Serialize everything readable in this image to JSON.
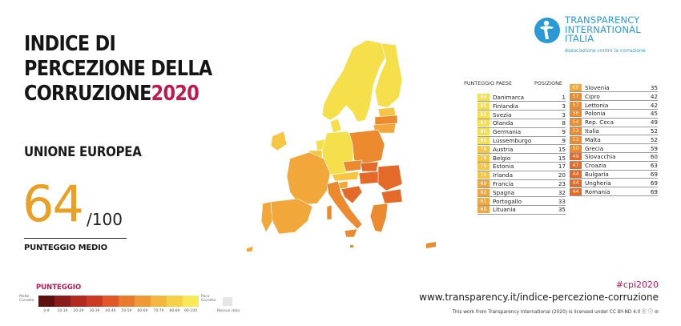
{
  "header": {
    "title_line1": "INDICE DI",
    "title_line2": "PERCEZIONE DELLA",
    "title_line3": "CORRUZIONE",
    "title_year": "2020"
  },
  "region": "UNIONE EUROPEA",
  "score": {
    "value": "64",
    "max": "/100",
    "label": "PUNTEGGIO MEDIO"
  },
  "logo": {
    "line1": "TRANSPARENCY",
    "line2": "INTERNATIONAL",
    "line3": "ITALIA",
    "subtitle": "Associazione contro la corruzione"
  },
  "table_headers": {
    "score": "PUNTEGGIO",
    "country": "PAESE",
    "rank": "POSIZIONE"
  },
  "countries_left": [
    {
      "score": "88",
      "name": "Danimarca",
      "rank": "1",
      "color": "#f5e04c"
    },
    {
      "score": "85",
      "name": "Finlandia",
      "rank": "3",
      "color": "#f5e04c"
    },
    {
      "score": "85",
      "name": "Svezia",
      "rank": "3",
      "color": "#f5e04c"
    },
    {
      "score": "82",
      "name": "Olanda",
      "rank": "8",
      "color": "#f5e04c"
    },
    {
      "score": "80",
      "name": "Germania",
      "rank": "9",
      "color": "#f5e04c"
    },
    {
      "score": "80",
      "name": "Lussemburgo",
      "rank": "9",
      "color": "#f5e04c"
    },
    {
      "score": "76",
      "name": "Austria",
      "rank": "15",
      "color": "#f6c544"
    },
    {
      "score": "76",
      "name": "Belgio",
      "rank": "15",
      "color": "#f6c544"
    },
    {
      "score": "75",
      "name": "Estonia",
      "rank": "17",
      "color": "#f6c544"
    },
    {
      "score": "72",
      "name": "Irlanda",
      "rank": "20",
      "color": "#f6c544"
    },
    {
      "score": "69",
      "name": "Francia",
      "rank": "23",
      "color": "#f2a73a"
    },
    {
      "score": "62",
      "name": "Spagna",
      "rank": "32",
      "color": "#f2a73a"
    },
    {
      "score": "61",
      "name": "Portogallo",
      "rank": "33",
      "color": "#f2a73a"
    },
    {
      "score": "60",
      "name": "Lituania",
      "rank": "35",
      "color": "#f2a73a"
    }
  ],
  "countries_right": [
    {
      "score": "60",
      "name": "Slovenia",
      "rank": "35",
      "color": "#f2a73a"
    },
    {
      "score": "57",
      "name": "Cipro",
      "rank": "42",
      "color": "#ec8a30"
    },
    {
      "score": "57",
      "name": "Lettonia",
      "rank": "42",
      "color": "#ec8a30"
    },
    {
      "score": "56",
      "name": "Polonia",
      "rank": "45",
      "color": "#ec8a30"
    },
    {
      "score": "54",
      "name": "Rep. Ceca",
      "rank": "49",
      "color": "#ec8a30"
    },
    {
      "score": "53",
      "name": "Italia",
      "rank": "52",
      "color": "#ec8a30"
    },
    {
      "score": "53",
      "name": "Malta",
      "rank": "52",
      "color": "#ec8a30"
    },
    {
      "score": "50",
      "name": "Grecia",
      "rank": "59",
      "color": "#ec8a30"
    },
    {
      "score": "49",
      "name": "Slovacchia",
      "rank": "60",
      "color": "#e46a2a"
    },
    {
      "score": "47",
      "name": "Croazia",
      "rank": "63",
      "color": "#e46a2a"
    },
    {
      "score": "44",
      "name": "Bulgaria",
      "rank": "69",
      "color": "#e46a2a"
    },
    {
      "score": "44",
      "name": "Ungheria",
      "rank": "69",
      "color": "#e46a2a"
    },
    {
      "score": "44",
      "name": "Romania",
      "rank": "69",
      "color": "#e46a2a"
    }
  ],
  "legend": {
    "title": "PUNTEGGIO",
    "left_label_1": "Molto",
    "left_label_2": "Corrotto",
    "right_label_1": "Poco",
    "right_label_2": "Corrotto",
    "no_data": "Nessun dato",
    "ranges": [
      "0-9",
      "10-19",
      "20-29",
      "30-39",
      "40-49",
      "50-59",
      "60-69",
      "70-79",
      "80-89",
      "90-100"
    ],
    "colors": [
      "#5c1010",
      "#8a1c1c",
      "#b22a22",
      "#cd3a24",
      "#e0572a",
      "#ea7a2e",
      "#f09a36",
      "#f4b63e",
      "#f6d048",
      "#f8e958"
    ]
  },
  "footer": {
    "hashtag": "#cpi2020",
    "url": "www.transparency.it/indice-percezione-corruzione",
    "license": "This work from Transparency International (2020) is licensed under CC BY-ND 4.0"
  }
}
